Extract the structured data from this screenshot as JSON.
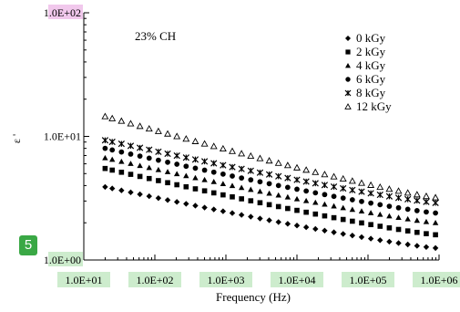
{
  "badge": {
    "label": "5"
  },
  "colors": {
    "axis": "#000000",
    "marker": "#000000",
    "y_highlight_top": "#f1c8ec",
    "tick_highlight": "#cdeccd",
    "badge": "#3aa845"
  },
  "chart_data": {
    "type": "scatter",
    "annotation": "23% CH",
    "xlabel": "Frequency (Hz)",
    "ylabel": "ε '",
    "x_scale": "log",
    "y_scale": "log",
    "xlim": [
      10,
      1000000
    ],
    "ylim": [
      1,
      100
    ],
    "x_tick_labels": [
      "1.0E+01",
      "1.0E+02",
      "1.0E+03",
      "1.0E+04",
      "1.0E+05",
      "1.0E+06"
    ],
    "y_tick_labels": [
      "1.0E+00",
      "1.0E+01",
      "1.0E+02"
    ],
    "grid": false,
    "legend_position": "top-right",
    "series": [
      {
        "name": "0 kGy",
        "marker": "diamond",
        "start": 3.9,
        "end": 1.25
      },
      {
        "name": "2 kGy",
        "marker": "square",
        "start": 5.5,
        "end": 1.6
      },
      {
        "name": "4 kGy",
        "marker": "triangle",
        "start": 6.7,
        "end": 2.0
      },
      {
        "name": "6 kGy",
        "marker": "circle",
        "start": 8.0,
        "end": 2.4
      },
      {
        "name": "8 kGy",
        "marker": "cross",
        "start": 9.3,
        "end": 2.9
      },
      {
        "name": "12 kGy",
        "marker": "triangle-open",
        "start": 14.5,
        "end": 3.2
      }
    ],
    "x_points_log10": [
      1.3,
      1.4,
      1.53,
      1.66,
      1.79,
      1.92,
      2.05,
      2.18,
      2.31,
      2.44,
      2.57,
      2.7,
      2.83,
      2.96,
      3.09,
      3.22,
      3.35,
      3.48,
      3.61,
      3.74,
      3.87,
      4.0,
      4.13,
      4.26,
      4.39,
      4.52,
      4.65,
      4.78,
      4.91,
      5.04,
      5.17,
      5.3,
      5.43,
      5.56,
      5.69,
      5.82,
      5.95
    ]
  }
}
